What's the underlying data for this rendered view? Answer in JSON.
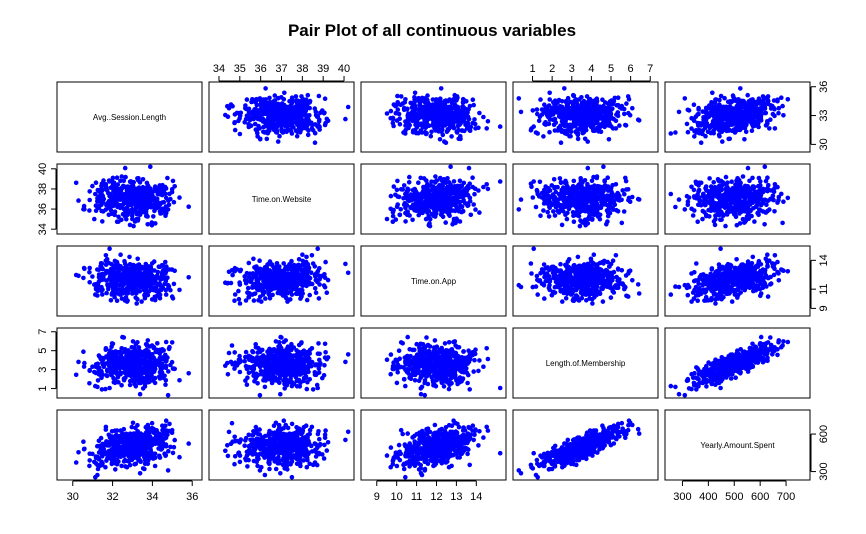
{
  "chart_data": {
    "type": "scatter",
    "subtype": "pairs-matrix",
    "title": "Pair Plot of all continuous variables",
    "point_color": "#0000ff",
    "frame_color": "#000000",
    "variables": [
      {
        "name": "Avg..Session.Length",
        "range": [
          29.5,
          36.2
        ],
        "mean": 33.05,
        "sd": 1.0,
        "ticks": [
          30,
          32,
          34,
          36
        ]
      },
      {
        "name": "Time.on.Website",
        "range": [
          33.8,
          40.2
        ],
        "mean": 37.05,
        "sd": 1.0,
        "ticks": [
          34,
          35,
          36,
          37,
          38,
          39,
          40
        ]
      },
      {
        "name": "Time.on.App",
        "range": [
          8.5,
          15.2
        ],
        "mean": 12.05,
        "sd": 1.0,
        "ticks": [
          9,
          10,
          11,
          12,
          13,
          14
        ]
      },
      {
        "name": "Length.of.Membership",
        "range": [
          0.3,
          7.1
        ],
        "mean": 3.53,
        "sd": 1.0,
        "ticks": [
          1,
          2,
          3,
          4,
          5,
          6,
          7
        ]
      },
      {
        "name": "Yearly.Amount.Spent",
        "range": [
          255,
          770
        ],
        "mean": 499,
        "sd": 79,
        "ticks": [
          300,
          400,
          500,
          600,
          700
        ]
      }
    ],
    "correlations": {
      "Avg..Session.Length|Time.on.Website": -0.03,
      "Avg..Session.Length|Time.on.App": -0.03,
      "Avg..Session.Length|Length.of.Membership": 0.06,
      "Avg..Session.Length|Yearly.Amount.Spent": 0.36,
      "Time.on.Website|Time.on.App": 0.08,
      "Time.on.Website|Length.of.Membership": -0.05,
      "Time.on.Website|Yearly.Amount.Spent": -0.003,
      "Time.on.App|Length.of.Membership": 0.03,
      "Time.on.App|Yearly.Amount.Spent": 0.5,
      "Length.of.Membership|Yearly.Amount.Spent": 0.81
    },
    "n_points": 500,
    "axes": {
      "bottom": {
        "columns": [
          0,
          2,
          4
        ]
      },
      "top": {
        "columns": [
          1,
          3
        ]
      },
      "left": {
        "rows": [
          1,
          3
        ]
      },
      "right": {
        "rows": [
          0,
          2,
          4
        ]
      },
      "tick_labels": [
        {
          "var": 0,
          "side": "bottom",
          "labels": [
            "30",
            "32",
            "34",
            "36"
          ]
        },
        {
          "var": 1,
          "side": "top",
          "labels": [
            "34",
            "35",
            "36",
            "37",
            "38",
            "39",
            "40"
          ]
        },
        {
          "var": 2,
          "side": "bottom",
          "labels": [
            "9",
            "10",
            "11",
            "12",
            "13",
            "14"
          ]
        },
        {
          "var": 3,
          "side": "top",
          "labels": [
            "1",
            "2",
            "3",
            "4",
            "5",
            "6",
            "7"
          ]
        },
        {
          "var": 4,
          "side": "bottom",
          "labels": [
            "300",
            "400",
            "500",
            "600",
            "700"
          ]
        },
        {
          "var": 0,
          "side": "right",
          "labels": [
            "30",
            "33",
            "36"
          ]
        },
        {
          "var": 1,
          "side": "left",
          "labels": [
            "34",
            "36",
            "38",
            "40"
          ]
        },
        {
          "var": 2,
          "side": "right",
          "labels": [
            "9",
            "11",
            "14"
          ]
        },
        {
          "var": 3,
          "side": "left",
          "labels": [
            "1",
            "3",
            "5",
            "7"
          ]
        },
        {
          "var": 4,
          "side": "right",
          "labels": [
            "300",
            "600"
          ]
        }
      ]
    }
  }
}
